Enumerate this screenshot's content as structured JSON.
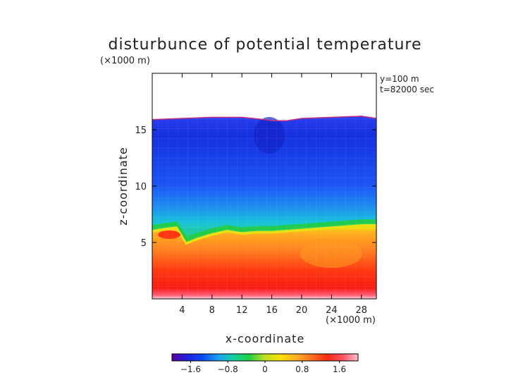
{
  "chart_data": {
    "type": "heatmap",
    "title": "disturbunce of potential temperature",
    "y_unit_label": "(×1000 m)",
    "x_unit_label": "(×1000 m)",
    "annotations": [
      "y=100 m",
      "t=82000 sec"
    ],
    "xlabel": "x-coordinate",
    "ylabel": "z-coordinate",
    "xlim": [
      0,
      30
    ],
    "ylim": [
      0,
      20
    ],
    "x_ticks": [
      4,
      8,
      12,
      16,
      20,
      24,
      28
    ],
    "y_ticks": [
      5,
      10,
      15
    ],
    "colorbar": {
      "range": [
        -2.0,
        2.0
      ],
      "ticks": [
        "-1.6",
        "-0.8",
        "0",
        "0.8",
        "1.6"
      ],
      "tick_values": [
        -1.6,
        -0.8,
        0,
        0.8,
        1.6
      ],
      "colors": [
        "#5a00a0",
        "#1f20e0",
        "#0a4cf0",
        "#1aa0f0",
        "#12d0a0",
        "#20d040",
        "#c0e020",
        "#f8e000",
        "#ffb020",
        "#ff7020",
        "#f82a10",
        "#ff5060",
        "#ffc0d0"
      ]
    },
    "field_description": "warm anomaly below ~6.5 km, cold anomaly from ~6.5 km to tropopause near 16 km, no data above",
    "interface_height_profile": {
      "x": [
        0,
        2,
        3.2,
        4.5,
        6,
        8,
        10,
        12,
        14,
        16,
        18,
        20,
        22,
        24,
        26,
        28,
        30
      ],
      "z": [
        6.2,
        6.4,
        6.5,
        5.1,
        5.5,
        5.9,
        6.2,
        6.0,
        6.1,
        6.1,
        6.2,
        6.3,
        6.4,
        6.5,
        6.6,
        6.7,
        6.7
      ]
    },
    "top_boundary_profile": {
      "x": [
        0,
        4,
        8,
        12,
        15,
        16,
        18,
        20,
        24,
        28,
        30
      ],
      "z": [
        15.9,
        16.0,
        16.1,
        16.1,
        15.9,
        15.8,
        15.8,
        16.0,
        16.1,
        16.2,
        16.0
      ]
    }
  }
}
